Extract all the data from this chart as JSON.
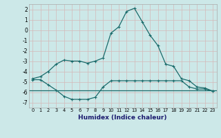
{
  "title": "",
  "xlabel": "Humidex (Indice chaleur)",
  "xlim": [
    -0.5,
    23.5
  ],
  "ylim": [
    -7.5,
    2.5
  ],
  "yticks": [
    2,
    1,
    0,
    -1,
    -2,
    -3,
    -4,
    -5,
    -6,
    -7
  ],
  "xticks": [
    0,
    1,
    2,
    3,
    4,
    5,
    6,
    7,
    8,
    9,
    10,
    11,
    12,
    13,
    14,
    15,
    16,
    17,
    18,
    19,
    20,
    21,
    22,
    23
  ],
  "background_color": "#cce8e8",
  "grid_color": "#b8d8d8",
  "line_color": "#1a6b6b",
  "line1_x": [
    0,
    1,
    2,
    3,
    4,
    5,
    6,
    7,
    8,
    9,
    10,
    11,
    12,
    13,
    14,
    15,
    16,
    17,
    18,
    19,
    20,
    21,
    22,
    23
  ],
  "line1_y": [
    -4.7,
    -4.5,
    -4.0,
    -3.3,
    -2.9,
    -3.0,
    -3.0,
    -3.2,
    -3.0,
    -2.7,
    -0.3,
    0.3,
    1.8,
    2.1,
    0.8,
    -0.5,
    -1.5,
    -3.3,
    -3.5,
    -4.7,
    -4.9,
    -5.5,
    -5.6,
    -5.9
  ],
  "line2_x": [
    0,
    1,
    2,
    3,
    4,
    5,
    6,
    7,
    8,
    9,
    10,
    11,
    12,
    13,
    14,
    15,
    16,
    17,
    18,
    19,
    20,
    21,
    22,
    23
  ],
  "line2_y": [
    -4.8,
    -4.8,
    -5.3,
    -5.8,
    -6.4,
    -6.7,
    -6.7,
    -6.7,
    -6.5,
    -5.5,
    -4.9,
    -4.9,
    -4.9,
    -4.9,
    -4.9,
    -4.9,
    -4.9,
    -4.9,
    -4.9,
    -4.9,
    -5.5,
    -5.7,
    -5.7,
    -5.9
  ],
  "line3_y": -5.85
}
